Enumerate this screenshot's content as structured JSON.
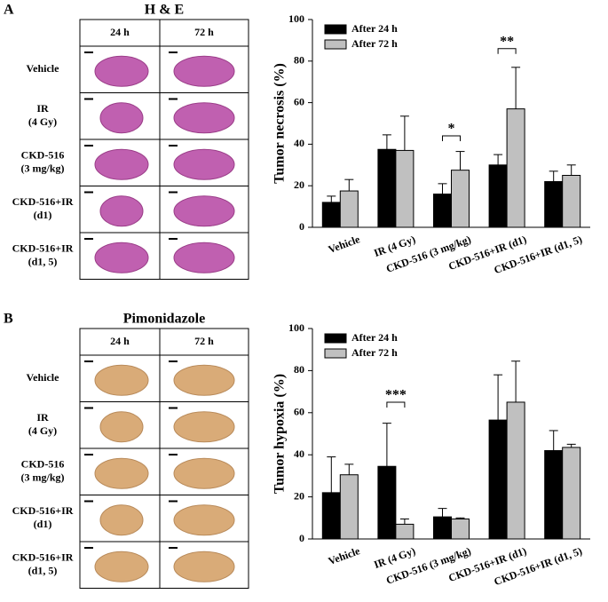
{
  "panels": [
    {
      "label": "A",
      "grid_title": "H & E",
      "columns": [
        "24 h",
        "72 h"
      ],
      "rows": [
        [
          "Vehicle"
        ],
        [
          "IR",
          "(4 Gy)"
        ],
        [
          "CKD-516",
          "(3 mg/kg)"
        ],
        [
          "CKD-516+IR",
          "(d1)"
        ],
        [
          "CKD-516+IR",
          "(d1, 5)"
        ]
      ]
    },
    {
      "label": "B",
      "grid_title": "Pimonidazole",
      "columns": [
        "24 h",
        "72 h"
      ],
      "rows": [
        [
          "Vehicle"
        ],
        [
          "IR",
          "(4 Gy)"
        ],
        [
          "CKD-516",
          "(3 mg/kg)"
        ],
        [
          "CKD-516+IR",
          "(d1)"
        ],
        [
          "CKD-516+IR",
          "(d1, 5)"
        ]
      ]
    }
  ],
  "chart_data": [
    {
      "type": "bar",
      "y_label": "Tumor necrosis (%)",
      "categories": [
        "Vehicle",
        "IR (4 Gy)",
        "CKD-516 (3 mg/kg)",
        "CKD-516+IR (d1)",
        "CKD-516+IR (d1, 5)"
      ],
      "series": [
        {
          "name": "After 24 h",
          "color": "#000000",
          "values": [
            12,
            37.5,
            16,
            30,
            22
          ],
          "errors": [
            3,
            7,
            5,
            5,
            5
          ]
        },
        {
          "name": "After 72 h",
          "color": "#c0c0c0",
          "values": [
            17.5,
            37,
            27.5,
            57,
            25
          ],
          "errors": [
            5.5,
            16.5,
            9,
            20,
            5
          ]
        }
      ],
      "ylim": [
        0,
        100
      ],
      "yticks": [
        0,
        20,
        40,
        60,
        80,
        100
      ],
      "annotations": [
        {
          "text": "*",
          "x": 2,
          "y": 44
        },
        {
          "text": "**",
          "x": 3,
          "y": 86
        }
      ]
    },
    {
      "type": "bar",
      "y_label": "Tumor hypoxia (%)",
      "categories": [
        "Vehicle",
        "IR (4 Gy)",
        "CKD-516 (3 mg/kg)",
        "CKD-516+IR (d1)",
        "CKD-516+IR (d1, 5)"
      ],
      "series": [
        {
          "name": "After 24 h",
          "color": "#000000",
          "values": [
            22,
            34.5,
            10.5,
            56.5,
            42
          ],
          "errors": [
            17,
            20.5,
            4,
            21.5,
            9.5
          ]
        },
        {
          "name": "After 72 h",
          "color": "#c0c0c0",
          "values": [
            30.5,
            7,
            9.5,
            65,
            43.5
          ],
          "errors": [
            5,
            2.5,
            0.5,
            19.5,
            1.5
          ]
        }
      ],
      "ylim": [
        0,
        100
      ],
      "yticks": [
        0,
        20,
        40,
        60,
        80,
        100
      ],
      "annotations": [
        {
          "text": "***",
          "x": 1,
          "y": 65
        }
      ]
    }
  ]
}
